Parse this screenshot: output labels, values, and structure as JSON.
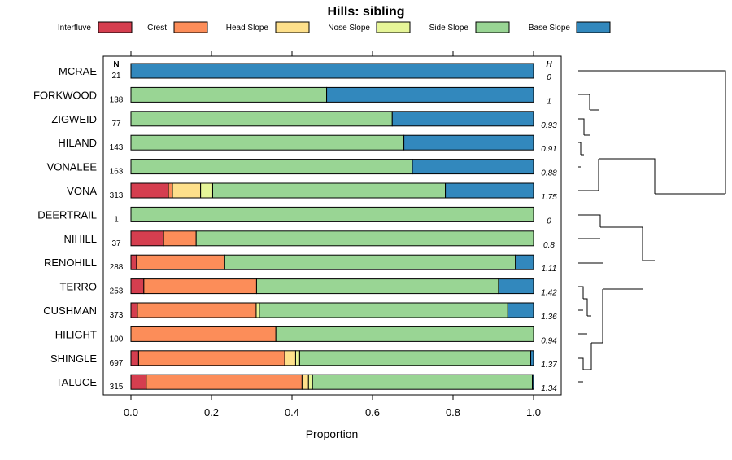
{
  "chart_data": {
    "type": "stacked-bar",
    "title": "Hills: sibling",
    "xlabel": "Proportion",
    "xlim": [
      0,
      1
    ],
    "xticks": [
      "0.0",
      "0.2",
      "0.4",
      "0.6",
      "0.8",
      "1.0"
    ],
    "n_header": "N",
    "h_header": "H",
    "legend": [
      {
        "name": "Interfluve",
        "color": "#d53e4f"
      },
      {
        "name": "Crest",
        "color": "#fc8d59"
      },
      {
        "name": "Head Slope",
        "color": "#fee08b"
      },
      {
        "name": "Nose Slope",
        "color": "#e6f598"
      },
      {
        "name": "Side Slope",
        "color": "#99d594"
      },
      {
        "name": "Base Slope",
        "color": "#3288bd"
      }
    ],
    "rows": [
      {
        "name": "MCRAE",
        "n": "21",
        "h": "0",
        "values": [
          0,
          0,
          0,
          0,
          0,
          1.0
        ]
      },
      {
        "name": "FORKWOOD",
        "n": "138",
        "h": "1",
        "values": [
          0,
          0,
          0,
          0,
          0.486,
          0.514
        ]
      },
      {
        "name": "ZIGWEID",
        "n": "77",
        "h": "0.93",
        "values": [
          0,
          0,
          0,
          0,
          0.649,
          0.351
        ]
      },
      {
        "name": "HILAND",
        "n": "143",
        "h": "0.91",
        "values": [
          0,
          0,
          0,
          0,
          0.678,
          0.322
        ]
      },
      {
        "name": "VONALEE",
        "n": "163",
        "h": "0.88",
        "values": [
          0,
          0,
          0,
          0,
          0.699,
          0.301
        ]
      },
      {
        "name": "VONA",
        "n": "313",
        "h": "1.75",
        "values": [
          0.093,
          0.01,
          0.07,
          0.03,
          0.578,
          0.219
        ]
      },
      {
        "name": "DEERTRAIL",
        "n": "1",
        "h": "0",
        "values": [
          0,
          0,
          0,
          0,
          1.0,
          0
        ]
      },
      {
        "name": "NIHILL",
        "n": "37",
        "h": "0.8",
        "values": [
          0.081,
          0.081,
          0,
          0,
          0.838,
          0
        ]
      },
      {
        "name": "RENOHILL",
        "n": "288",
        "h": "1.11",
        "values": [
          0.014,
          0.219,
          0,
          0,
          0.722,
          0.045
        ]
      },
      {
        "name": "TERRO",
        "n": "253",
        "h": "1.42",
        "values": [
          0.032,
          0.28,
          0,
          0,
          0.601,
          0.087
        ]
      },
      {
        "name": "CUSHMAN",
        "n": "373",
        "h": "1.36",
        "values": [
          0.016,
          0.295,
          0,
          0.008,
          0.617,
          0.064
        ]
      },
      {
        "name": "HILIGHT",
        "n": "100",
        "h": "0.94",
        "values": [
          0,
          0.36,
          0,
          0,
          0.64,
          0
        ]
      },
      {
        "name": "SHINGLE",
        "n": "697",
        "h": "1.37",
        "values": [
          0.019,
          0.363,
          0.027,
          0.01,
          0.574,
          0.007
        ]
      },
      {
        "name": "TALUCE",
        "n": "315",
        "h": "1.34",
        "values": [
          0.038,
          0.387,
          0.016,
          0.01,
          0.546,
          0.003
        ]
      }
    ]
  }
}
